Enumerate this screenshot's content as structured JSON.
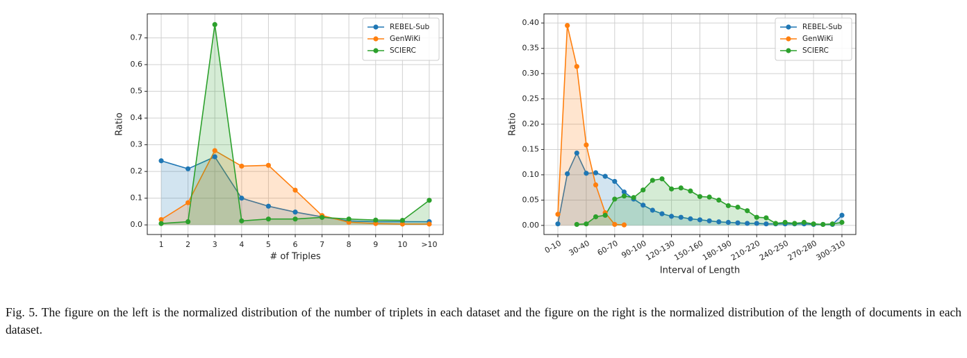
{
  "chart_data": [
    {
      "type": "line",
      "xlabel": "# of Triples",
      "ylabel": "Ratio",
      "categories": [
        "1",
        "2",
        "3",
        "4",
        "5",
        "6",
        "7",
        "8",
        "9",
        "10",
        ">10"
      ],
      "series": [
        {
          "name": "REBEL-Sub",
          "color": "#1f77b4",
          "values": [
            0.24,
            0.21,
            0.255,
            0.1,
            0.07,
            0.048,
            0.03,
            0.015,
            0.012,
            0.012,
            0.012
          ]
        },
        {
          "name": "GenWiKi",
          "color": "#ff7f0e",
          "values": [
            0.02,
            0.083,
            0.278,
            0.22,
            0.223,
            0.13,
            0.035,
            0.01,
            0.005,
            0.003,
            0.003
          ]
        },
        {
          "name": "SCIERC",
          "color": "#2ca02c",
          "values": [
            0.005,
            0.012,
            0.75,
            0.015,
            0.022,
            0.022,
            0.028,
            0.022,
            0.018,
            0.017,
            0.092
          ]
        }
      ],
      "ylim": [
        -0.036,
        0.79
      ],
      "yticks": [
        {
          "value": 0,
          "label": "0.0"
        },
        {
          "value": 0.1,
          "label": "0.1"
        },
        {
          "value": 0.2,
          "label": "0.2"
        },
        {
          "value": 0.3,
          "label": "0.3"
        },
        {
          "value": 0.4,
          "label": "0.4"
        },
        {
          "value": 0.5,
          "label": "0.5"
        },
        {
          "value": 0.6,
          "label": "0.6"
        },
        {
          "value": 0.7,
          "label": "0.7"
        }
      ],
      "grid": true,
      "legend": "upper right",
      "fill": true
    },
    {
      "type": "line",
      "xlabel": "Interval of Length",
      "ylabel": "Ratio",
      "categories": [
        "0-10",
        null,
        null,
        "30-40",
        null,
        null,
        "60-70",
        null,
        null,
        "90-100",
        null,
        null,
        "120-130",
        null,
        null,
        "150-160",
        null,
        null,
        "180-190",
        null,
        null,
        "210-220",
        null,
        null,
        "240-250",
        null,
        null,
        "270-280",
        null,
        null,
        "300-310"
      ],
      "series": [
        {
          "name": "REBEL-Sub",
          "color": "#1f77b4",
          "values": [
            0.003,
            0.102,
            0.143,
            0.103,
            0.104,
            0.097,
            0.087,
            0.066,
            0.052,
            0.04,
            0.03,
            0.023,
            0.018,
            0.016,
            0.013,
            0.011,
            0.009,
            0.007,
            0.006,
            0.005,
            0.004,
            0.004,
            0.003,
            0.003,
            0.003,
            0.003,
            0.003,
            0.002,
            0.002,
            0.002,
            0.02
          ]
        },
        {
          "name": "GenWiKi",
          "color": "#ff7f0e",
          "values": [
            0.022,
            0.395,
            0.314,
            0.159,
            0.08,
            0.025,
            0.002,
            0.001,
            null,
            null,
            null,
            null,
            null,
            null,
            null,
            null,
            null,
            null,
            null,
            null,
            null,
            null,
            null,
            null,
            null,
            null,
            null,
            null,
            null,
            null,
            null
          ]
        },
        {
          "name": "SCIERC",
          "color": "#2ca02c",
          "values": [
            null,
            null,
            0.002,
            0.003,
            0.017,
            0.02,
            0.052,
            0.058,
            0.055,
            0.07,
            0.089,
            0.092,
            0.072,
            0.074,
            0.068,
            0.057,
            0.056,
            0.05,
            0.039,
            0.036,
            0.029,
            0.016,
            0.015,
            0.004,
            0.006,
            0.004,
            0.006,
            0.003,
            0.002,
            0.003,
            0.006
          ]
        }
      ],
      "ylim": [
        -0.018,
        0.418
      ],
      "yticks": [
        {
          "value": 0,
          "label": "0.00"
        },
        {
          "value": 0.05,
          "label": "0.05"
        },
        {
          "value": 0.1,
          "label": "0.10"
        },
        {
          "value": 0.15,
          "label": "0.15"
        },
        {
          "value": 0.2,
          "label": "0.20"
        },
        {
          "value": 0.25,
          "label": "0.25"
        },
        {
          "value": 0.3,
          "label": "0.30"
        },
        {
          "value": 0.35,
          "label": "0.35"
        },
        {
          "value": 0.4,
          "label": "0.40"
        }
      ],
      "grid": true,
      "legend": "upper right",
      "fill": true
    }
  ],
  "caption": "Fig. 5.  The figure on the left is the normalized distribution of the number of triplets in each dataset and the figure on the right is the normalized distribution of the length of documents in each dataset."
}
